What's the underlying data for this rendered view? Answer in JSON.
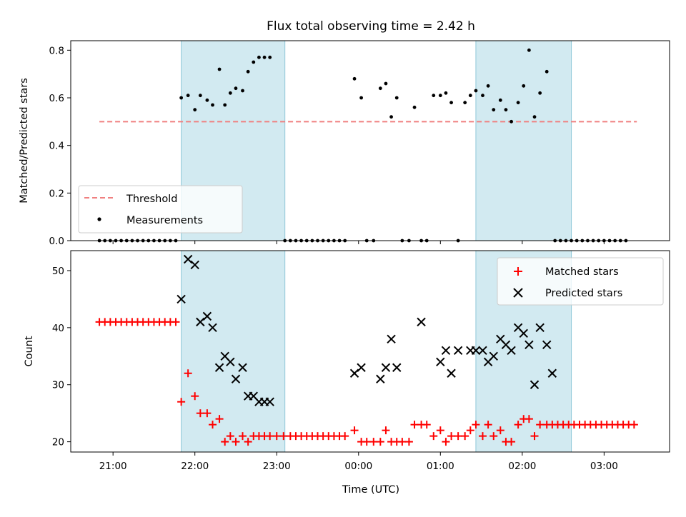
{
  "chart_data": {
    "title": "Flux total observing time = 2.42 h",
    "xlabel": "Time (UTC)",
    "x_ticks": [
      "21:00",
      "22:00",
      "23:00",
      "00:00",
      "01:00",
      "02:00",
      "03:00"
    ],
    "shaded_intervals": [
      [
        "21:50",
        "23:06"
      ],
      [
        "01:26",
        "02:36"
      ]
    ],
    "shade_color": "#add8e6",
    "panels": [
      {
        "type": "scatter",
        "ylabel": "Matched/Predicted stars",
        "ylim": [
          0.0,
          0.84
        ],
        "y_ticks": [
          "0.0",
          "0.2",
          "0.4",
          "0.6",
          "0.8"
        ],
        "series": [
          {
            "name": "Threshold",
            "style": "dashed-line",
            "color": "#f08080",
            "points": [
              [
                "20:50",
                0.5
              ],
              [
                "03:24",
                0.5
              ]
            ]
          },
          {
            "name": "Measurements",
            "style": "dot",
            "color": "#000000",
            "points": [
              [
                "20:50",
                0
              ],
              [
                "20:54",
                0
              ],
              [
                "20:58",
                0
              ],
              [
                "21:02",
                0
              ],
              [
                "21:06",
                0
              ],
              [
                "21:10",
                0
              ],
              [
                "21:14",
                0
              ],
              [
                "21:18",
                0
              ],
              [
                "21:22",
                0
              ],
              [
                "21:26",
                0
              ],
              [
                "21:30",
                0
              ],
              [
                "21:34",
                0
              ],
              [
                "21:38",
                0
              ],
              [
                "21:42",
                0
              ],
              [
                "21:46",
                0
              ],
              [
                "21:50",
                0.6
              ],
              [
                "21:55",
                0.61
              ],
              [
                "22:00",
                0.55
              ],
              [
                "22:04",
                0.61
              ],
              [
                "22:09",
                0.59
              ],
              [
                "22:13",
                0.57
              ],
              [
                "22:18",
                0.72
              ],
              [
                "22:22",
                0.57
              ],
              [
                "22:26",
                0.62
              ],
              [
                "22:30",
                0.64
              ],
              [
                "22:35",
                0.63
              ],
              [
                "22:39",
                0.71
              ],
              [
                "22:43",
                0.75
              ],
              [
                "22:47",
                0.77
              ],
              [
                "22:51",
                0.77
              ],
              [
                "22:55",
                0.77
              ],
              [
                "23:06",
                0
              ],
              [
                "23:10",
                0
              ],
              [
                "23:14",
                0
              ],
              [
                "23:18",
                0
              ],
              [
                "23:22",
                0
              ],
              [
                "23:26",
                0
              ],
              [
                "23:30",
                0
              ],
              [
                "23:34",
                0
              ],
              [
                "23:38",
                0
              ],
              [
                "23:42",
                0
              ],
              [
                "23:46",
                0
              ],
              [
                "23:50",
                0
              ],
              [
                "23:57",
                0.68
              ],
              [
                "00:02",
                0.6
              ],
              [
                "00:06",
                0
              ],
              [
                "00:11",
                0
              ],
              [
                "00:16",
                0.64
              ],
              [
                "00:20",
                0.66
              ],
              [
                "00:24",
                0.52
              ],
              [
                "00:28",
                0.6
              ],
              [
                "00:32",
                0
              ],
              [
                "00:37",
                0
              ],
              [
                "00:41",
                0.56
              ],
              [
                "00:46",
                0
              ],
              [
                "00:50",
                0
              ],
              [
                "00:55",
                0.61
              ],
              [
                "01:00",
                0.61
              ],
              [
                "01:04",
                0.62
              ],
              [
                "01:08",
                0.58
              ],
              [
                "01:13",
                0
              ],
              [
                "01:18",
                0.58
              ],
              [
                "01:22",
                0.61
              ],
              [
                "01:26",
                0.63
              ],
              [
                "01:31",
                0.61
              ],
              [
                "01:35",
                0.65
              ],
              [
                "01:39",
                0.55
              ],
              [
                "01:44",
                0.59
              ],
              [
                "01:48",
                0.55
              ],
              [
                "01:52",
                0.5
              ],
              [
                "01:57",
                0.58
              ],
              [
                "02:01",
                0.65
              ],
              [
                "02:05",
                0.8
              ],
              [
                "02:09",
                0.52
              ],
              [
                "02:13",
                0.62
              ],
              [
                "02:18",
                0.71
              ],
              [
                "02:24",
                0
              ],
              [
                "02:28",
                0
              ],
              [
                "02:32",
                0
              ],
              [
                "02:36",
                0
              ],
              [
                "02:40",
                0
              ],
              [
                "02:44",
                0
              ],
              [
                "02:48",
                0
              ],
              [
                "02:52",
                0
              ],
              [
                "02:56",
                0
              ],
              [
                "03:00",
                0
              ],
              [
                "03:04",
                0
              ],
              [
                "03:08",
                0
              ],
              [
                "03:12",
                0
              ],
              [
                "03:16",
                0
              ]
            ]
          }
        ],
        "legend": "lower-left"
      },
      {
        "type": "scatter",
        "ylabel": "Count",
        "ylim": [
          18.2,
          53.5
        ],
        "y_ticks": [
          "20",
          "30",
          "40",
          "50"
        ],
        "series": [
          {
            "name": "Matched stars",
            "style": "plus",
            "color": "#ff0000",
            "points": [
              [
                "20:50",
                41
              ],
              [
                "20:54",
                41
              ],
              [
                "20:58",
                41
              ],
              [
                "21:02",
                41
              ],
              [
                "21:06",
                41
              ],
              [
                "21:10",
                41
              ],
              [
                "21:14",
                41
              ],
              [
                "21:18",
                41
              ],
              [
                "21:22",
                41
              ],
              [
                "21:26",
                41
              ],
              [
                "21:30",
                41
              ],
              [
                "21:34",
                41
              ],
              [
                "21:38",
                41
              ],
              [
                "21:42",
                41
              ],
              [
                "21:46",
                41
              ],
              [
                "21:50",
                27
              ],
              [
                "21:55",
                32
              ],
              [
                "22:00",
                28
              ],
              [
                "22:04",
                25
              ],
              [
                "22:09",
                25
              ],
              [
                "22:13",
                23
              ],
              [
                "22:18",
                24
              ],
              [
                "22:22",
                20
              ],
              [
                "22:26",
                21
              ],
              [
                "22:30",
                20
              ],
              [
                "22:35",
                21
              ],
              [
                "22:39",
                20
              ],
              [
                "22:43",
                21
              ],
              [
                "22:47",
                21
              ],
              [
                "22:51",
                21
              ],
              [
                "22:55",
                21
              ],
              [
                "23:00",
                21
              ],
              [
                "23:05",
                21
              ],
              [
                "23:10",
                21
              ],
              [
                "23:14",
                21
              ],
              [
                "23:18",
                21
              ],
              [
                "23:22",
                21
              ],
              [
                "23:26",
                21
              ],
              [
                "23:30",
                21
              ],
              [
                "23:34",
                21
              ],
              [
                "23:38",
                21
              ],
              [
                "23:42",
                21
              ],
              [
                "23:46",
                21
              ],
              [
                "23:50",
                21
              ],
              [
                "23:57",
                22
              ],
              [
                "00:02",
                20
              ],
              [
                "00:06",
                20
              ],
              [
                "00:11",
                20
              ],
              [
                "00:16",
                20
              ],
              [
                "00:20",
                22
              ],
              [
                "00:24",
                20
              ],
              [
                "00:28",
                20
              ],
              [
                "00:32",
                20
              ],
              [
                "00:37",
                20
              ],
              [
                "00:41",
                23
              ],
              [
                "00:46",
                23
              ],
              [
                "00:50",
                23
              ],
              [
                "00:55",
                21
              ],
              [
                "01:00",
                22
              ],
              [
                "01:04",
                20
              ],
              [
                "01:08",
                21
              ],
              [
                "01:13",
                21
              ],
              [
                "01:18",
                21
              ],
              [
                "01:22",
                22
              ],
              [
                "01:26",
                23
              ],
              [
                "01:31",
                21
              ],
              [
                "01:35",
                23
              ],
              [
                "01:39",
                21
              ],
              [
                "01:44",
                22
              ],
              [
                "01:48",
                20
              ],
              [
                "01:52",
                20
              ],
              [
                "01:57",
                23
              ],
              [
                "02:01",
                24
              ],
              [
                "02:05",
                24
              ],
              [
                "02:09",
                21
              ],
              [
                "02:13",
                23
              ],
              [
                "02:18",
                23
              ],
              [
                "02:22",
                23
              ],
              [
                "02:26",
                23
              ],
              [
                "02:30",
                23
              ],
              [
                "02:34",
                23
              ],
              [
                "02:38",
                23
              ],
              [
                "02:42",
                23
              ],
              [
                "02:46",
                23
              ],
              [
                "02:50",
                23
              ],
              [
                "02:54",
                23
              ],
              [
                "02:58",
                23
              ],
              [
                "03:02",
                23
              ],
              [
                "03:06",
                23
              ],
              [
                "03:10",
                23
              ],
              [
                "03:14",
                23
              ],
              [
                "03:18",
                23
              ],
              [
                "03:22",
                23
              ]
            ]
          },
          {
            "name": "Predicted stars",
            "style": "x",
            "color": "#000000",
            "points": [
              [
                "21:50",
                45
              ],
              [
                "21:55",
                52
              ],
              [
                "22:00",
                51
              ],
              [
                "22:04",
                41
              ],
              [
                "22:09",
                42
              ],
              [
                "22:13",
                40
              ],
              [
                "22:18",
                33
              ],
              [
                "22:22",
                35
              ],
              [
                "22:26",
                34
              ],
              [
                "22:30",
                31
              ],
              [
                "22:35",
                33
              ],
              [
                "22:39",
                28
              ],
              [
                "22:43",
                28
              ],
              [
                "22:47",
                27
              ],
              [
                "22:51",
                27
              ],
              [
                "22:55",
                27
              ],
              [
                "23:57",
                32
              ],
              [
                "00:02",
                33
              ],
              [
                "00:16",
                31
              ],
              [
                "00:20",
                33
              ],
              [
                "00:24",
                38
              ],
              [
                "00:28",
                33
              ],
              [
                "00:46",
                41
              ],
              [
                "01:00",
                34
              ],
              [
                "01:04",
                36
              ],
              [
                "01:08",
                32
              ],
              [
                "01:13",
                36
              ],
              [
                "01:22",
                36
              ],
              [
                "01:26",
                36
              ],
              [
                "01:31",
                36
              ],
              [
                "01:35",
                34
              ],
              [
                "01:39",
                35
              ],
              [
                "01:44",
                38
              ],
              [
                "01:48",
                37
              ],
              [
                "01:52",
                36
              ],
              [
                "01:57",
                40
              ],
              [
                "02:01",
                39
              ],
              [
                "02:05",
                37
              ],
              [
                "02:09",
                30
              ],
              [
                "02:13",
                40
              ],
              [
                "02:18",
                37
              ],
              [
                "02:22",
                32
              ]
            ]
          }
        ],
        "legend": "top-right"
      }
    ]
  }
}
